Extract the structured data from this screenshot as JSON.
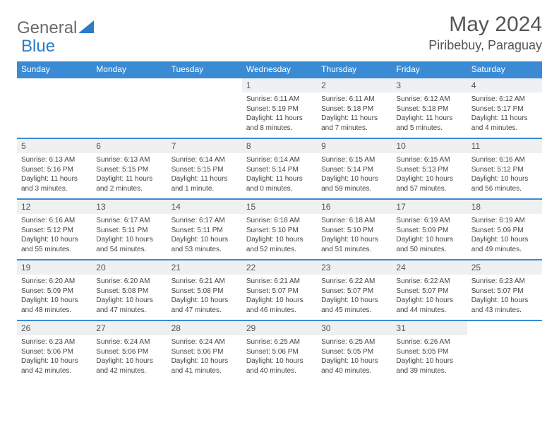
{
  "logo": {
    "text1": "General",
    "text2": "Blue",
    "accent_color": "#2b7cc4",
    "text_color": "#6b6b6b"
  },
  "header": {
    "month_title": "May 2024",
    "location": "Piribebuy, Paraguay",
    "title_color": "#555555"
  },
  "colors": {
    "header_bg": "#3b8bd4",
    "header_text": "#ffffff",
    "daynum_bg": "#eef0f2",
    "daynum_text": "#555555",
    "detail_text": "#444444",
    "row_border": "#3b8bd4"
  },
  "day_headers": [
    "Sunday",
    "Monday",
    "Tuesday",
    "Wednesday",
    "Thursday",
    "Friday",
    "Saturday"
  ],
  "weeks": [
    [
      null,
      null,
      null,
      {
        "n": "1",
        "sr": "6:11 AM",
        "ss": "5:19 PM",
        "dl": "11 hours and 8 minutes."
      },
      {
        "n": "2",
        "sr": "6:11 AM",
        "ss": "5:18 PM",
        "dl": "11 hours and 7 minutes."
      },
      {
        "n": "3",
        "sr": "6:12 AM",
        "ss": "5:18 PM",
        "dl": "11 hours and 5 minutes."
      },
      {
        "n": "4",
        "sr": "6:12 AM",
        "ss": "5:17 PM",
        "dl": "11 hours and 4 minutes."
      }
    ],
    [
      {
        "n": "5",
        "sr": "6:13 AM",
        "ss": "5:16 PM",
        "dl": "11 hours and 3 minutes."
      },
      {
        "n": "6",
        "sr": "6:13 AM",
        "ss": "5:15 PM",
        "dl": "11 hours and 2 minutes."
      },
      {
        "n": "7",
        "sr": "6:14 AM",
        "ss": "5:15 PM",
        "dl": "11 hours and 1 minute."
      },
      {
        "n": "8",
        "sr": "6:14 AM",
        "ss": "5:14 PM",
        "dl": "11 hours and 0 minutes."
      },
      {
        "n": "9",
        "sr": "6:15 AM",
        "ss": "5:14 PM",
        "dl": "10 hours and 59 minutes."
      },
      {
        "n": "10",
        "sr": "6:15 AM",
        "ss": "5:13 PM",
        "dl": "10 hours and 57 minutes."
      },
      {
        "n": "11",
        "sr": "6:16 AM",
        "ss": "5:12 PM",
        "dl": "10 hours and 56 minutes."
      }
    ],
    [
      {
        "n": "12",
        "sr": "6:16 AM",
        "ss": "5:12 PM",
        "dl": "10 hours and 55 minutes."
      },
      {
        "n": "13",
        "sr": "6:17 AM",
        "ss": "5:11 PM",
        "dl": "10 hours and 54 minutes."
      },
      {
        "n": "14",
        "sr": "6:17 AM",
        "ss": "5:11 PM",
        "dl": "10 hours and 53 minutes."
      },
      {
        "n": "15",
        "sr": "6:18 AM",
        "ss": "5:10 PM",
        "dl": "10 hours and 52 minutes."
      },
      {
        "n": "16",
        "sr": "6:18 AM",
        "ss": "5:10 PM",
        "dl": "10 hours and 51 minutes."
      },
      {
        "n": "17",
        "sr": "6:19 AM",
        "ss": "5:09 PM",
        "dl": "10 hours and 50 minutes."
      },
      {
        "n": "18",
        "sr": "6:19 AM",
        "ss": "5:09 PM",
        "dl": "10 hours and 49 minutes."
      }
    ],
    [
      {
        "n": "19",
        "sr": "6:20 AM",
        "ss": "5:09 PM",
        "dl": "10 hours and 48 minutes."
      },
      {
        "n": "20",
        "sr": "6:20 AM",
        "ss": "5:08 PM",
        "dl": "10 hours and 47 minutes."
      },
      {
        "n": "21",
        "sr": "6:21 AM",
        "ss": "5:08 PM",
        "dl": "10 hours and 47 minutes."
      },
      {
        "n": "22",
        "sr": "6:21 AM",
        "ss": "5:07 PM",
        "dl": "10 hours and 46 minutes."
      },
      {
        "n": "23",
        "sr": "6:22 AM",
        "ss": "5:07 PM",
        "dl": "10 hours and 45 minutes."
      },
      {
        "n": "24",
        "sr": "6:22 AM",
        "ss": "5:07 PM",
        "dl": "10 hours and 44 minutes."
      },
      {
        "n": "25",
        "sr": "6:23 AM",
        "ss": "5:07 PM",
        "dl": "10 hours and 43 minutes."
      }
    ],
    [
      {
        "n": "26",
        "sr": "6:23 AM",
        "ss": "5:06 PM",
        "dl": "10 hours and 42 minutes."
      },
      {
        "n": "27",
        "sr": "6:24 AM",
        "ss": "5:06 PM",
        "dl": "10 hours and 42 minutes."
      },
      {
        "n": "28",
        "sr": "6:24 AM",
        "ss": "5:06 PM",
        "dl": "10 hours and 41 minutes."
      },
      {
        "n": "29",
        "sr": "6:25 AM",
        "ss": "5:06 PM",
        "dl": "10 hours and 40 minutes."
      },
      {
        "n": "30",
        "sr": "6:25 AM",
        "ss": "5:05 PM",
        "dl": "10 hours and 40 minutes."
      },
      {
        "n": "31",
        "sr": "6:26 AM",
        "ss": "5:05 PM",
        "dl": "10 hours and 39 minutes."
      },
      null
    ]
  ],
  "labels": {
    "sunrise": "Sunrise:",
    "sunset": "Sunset:",
    "daylight": "Daylight:"
  }
}
